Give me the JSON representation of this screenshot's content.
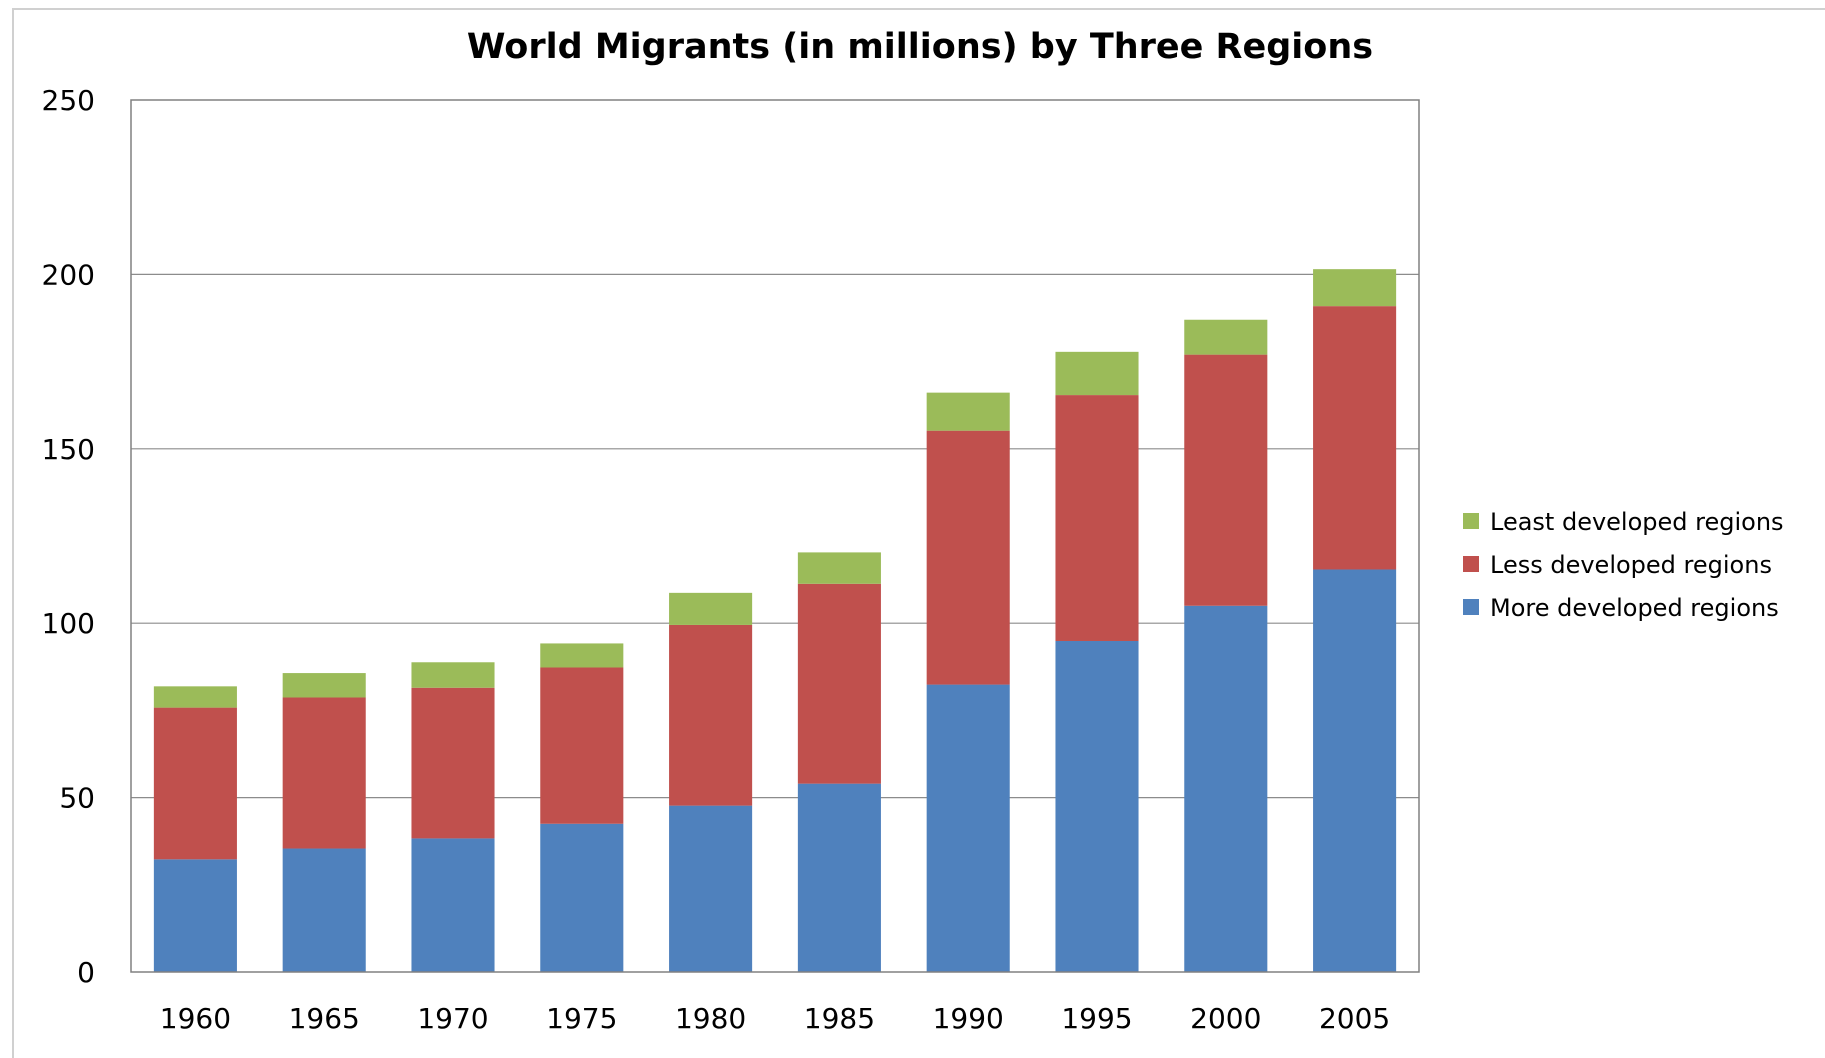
{
  "chart_data": {
    "type": "bar",
    "stacked": true,
    "title": "World Migrants (in millions) by Three Regions",
    "xlabel": "",
    "ylabel": "",
    "ylim": [
      0,
      250
    ],
    "yticks": [
      "0",
      "50",
      "100",
      "150",
      "200",
      "250"
    ],
    "grid": true,
    "legend_position": "right",
    "categories": [
      "1960",
      "1965",
      "1970",
      "1975",
      "1980",
      "1985",
      "1990",
      "1995",
      "2000",
      "2005"
    ],
    "series": [
      {
        "name": "More developed regions",
        "color": "#4F81BD",
        "values": [
          32.3,
          35.4,
          38.3,
          42.5,
          47.7,
          54.0,
          82.4,
          94.9,
          105.0,
          115.4
        ]
      },
      {
        "name": "Less developed regions",
        "color": "#C0504D",
        "values": [
          43.5,
          43.3,
          43.2,
          44.8,
          51.8,
          57.3,
          72.8,
          70.5,
          72.0,
          75.5
        ]
      },
      {
        "name": "Least developed regions",
        "color": "#9BBB59",
        "values": [
          6.1,
          7.0,
          7.3,
          6.9,
          9.2,
          9.0,
          10.9,
          12.4,
          10.0,
          10.6
        ]
      }
    ],
    "legend_order": [
      "Least developed regions",
      "Less developed regions",
      "More developed regions"
    ]
  }
}
